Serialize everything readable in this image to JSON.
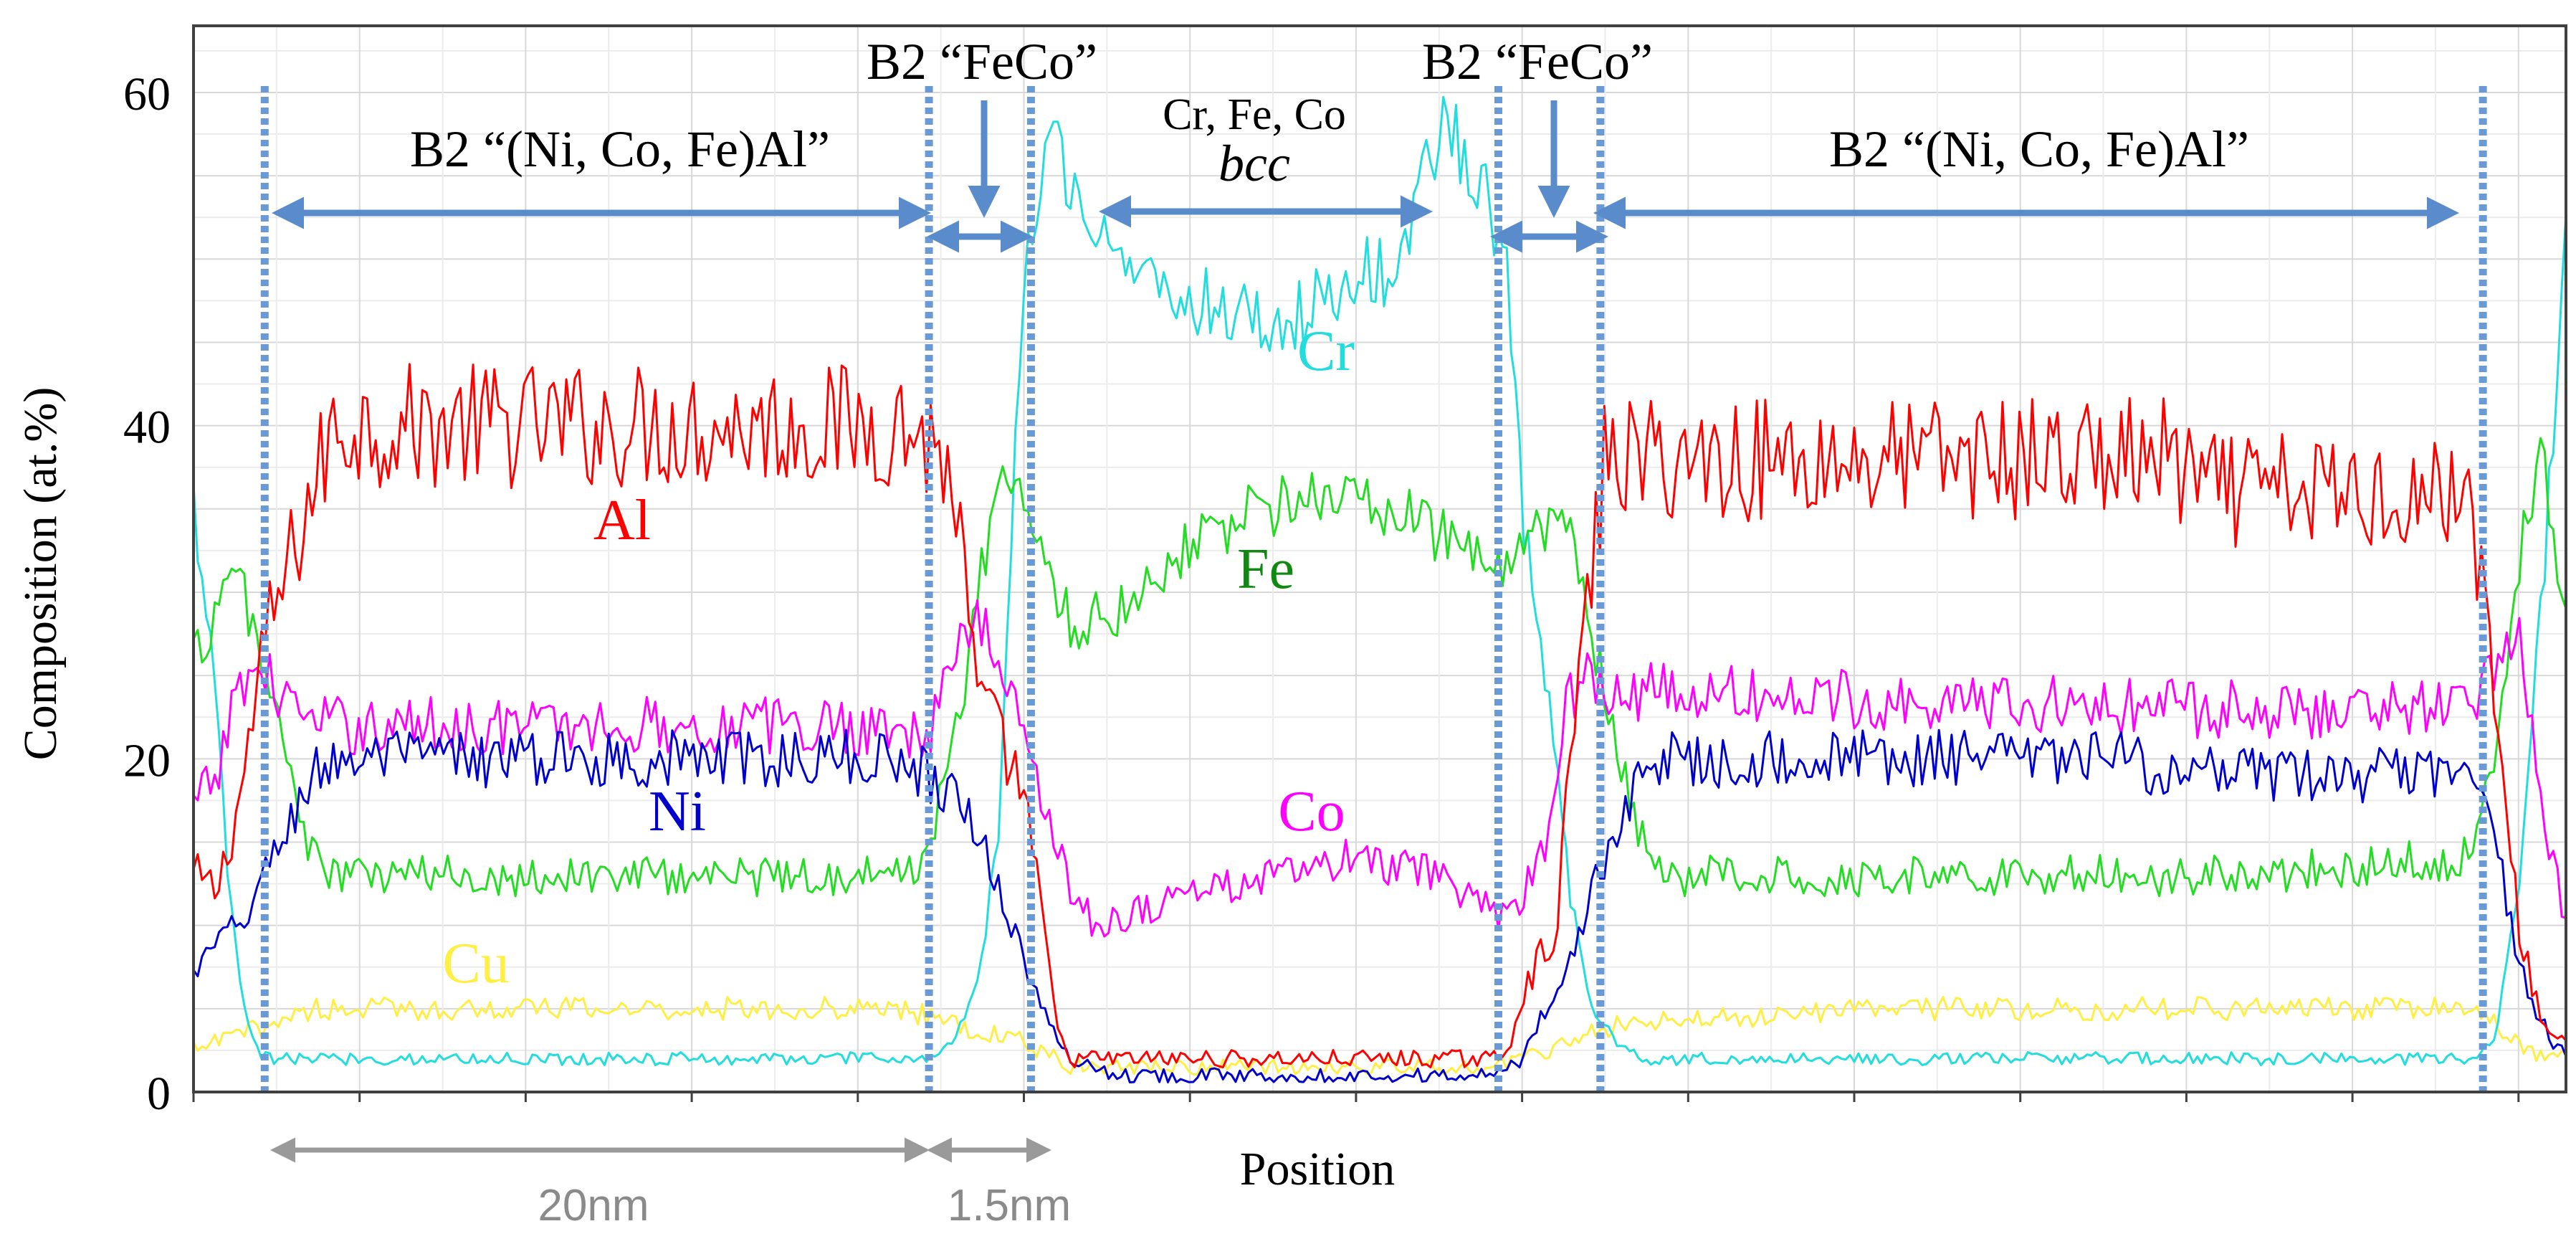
{
  "chart_data": {
    "type": "line",
    "title": "",
    "xlabel": "Position",
    "ylabel": "Composition (at.%)",
    "xlim": [
      0,
      100
    ],
    "ylim": [
      0,
      64
    ],
    "yticks": [
      0,
      20,
      40,
      60
    ],
    "grid": true,
    "series": [
      {
        "name": "Al",
        "label": "Al",
        "color": "#ff0000",
        "x": [
          0,
          1,
          2,
          3,
          5,
          6,
          30,
          31,
          32,
          33,
          35,
          36,
          36.5,
          37,
          39,
          42,
          51,
          52,
          53,
          55,
          55.5,
          56,
          57.5,
          58,
          59,
          59.5,
          67,
          68,
          82,
          83,
          84,
          85,
          96,
          97,
          98,
          99,
          100
        ],
        "y": [
          13,
          12,
          18,
          27,
          36,
          40,
          40,
          39,
          37,
          24,
          18,
          8,
          3,
          2,
          2,
          2,
          2,
          2,
          2,
          2,
          3,
          6,
          10,
          20,
          32,
          38,
          38,
          38,
          38,
          38,
          37,
          36,
          36,
          23,
          10,
          4,
          3
        ]
      },
      {
        "name": "Ni",
        "label": "Ni",
        "color": "#0000cc",
        "x": [
          0,
          1,
          2,
          3,
          4,
          5,
          6,
          30,
          31,
          32,
          33,
          34,
          35,
          36,
          37,
          39,
          42,
          51,
          52,
          53,
          55,
          56,
          57,
          58,
          59,
          60,
          61,
          62,
          68,
          82,
          83,
          84,
          85,
          96,
          97,
          98,
          99,
          100
        ],
        "y": [
          7,
          9,
          10,
          13,
          16,
          19,
          20,
          20,
          19,
          18,
          16,
          12,
          8,
          4,
          2,
          1,
          1,
          1,
          1,
          1,
          1,
          2,
          5,
          8,
          12,
          16,
          19,
          20,
          20,
          20,
          19,
          19,
          19,
          19,
          15,
          8,
          4,
          2
        ]
      },
      {
        "name": "Co",
        "label": "Co",
        "color": "#ff00ff",
        "x": [
          0,
          1,
          2,
          3,
          5,
          30,
          31,
          32,
          33,
          34,
          35,
          36,
          37,
          38,
          42,
          46,
          49,
          52,
          54,
          55,
          56,
          57,
          57.5,
          58,
          59,
          60,
          85,
          96,
          97,
          98,
          99,
          100
        ],
        "y": [
          17,
          19,
          25,
          25,
          22,
          22,
          21,
          26,
          29,
          25,
          22,
          17,
          12,
          10,
          12,
          13,
          14,
          13,
          12,
          10,
          12,
          15,
          20,
          24,
          25,
          24,
          23,
          23,
          26,
          28,
          17,
          10
        ]
      },
      {
        "name": "Fe",
        "label": "Fe",
        "color": "#22dd22",
        "x": [
          0,
          1,
          2,
          3,
          4,
          5,
          6,
          30,
          31,
          32,
          33,
          34,
          35,
          36,
          37,
          39,
          42,
          45,
          48,
          50,
          52,
          55,
          56,
          57,
          57.5,
          58,
          59,
          60,
          61,
          62,
          85,
          96,
          97,
          98,
          99,
          100
        ],
        "y": [
          26,
          29,
          31,
          25,
          20,
          14,
          13,
          13,
          15,
          20,
          30,
          37,
          35,
          32,
          28,
          29,
          33,
          35,
          36,
          35,
          34,
          31,
          32,
          34,
          36,
          33,
          27,
          20,
          15,
          13,
          13,
          14,
          20,
          32,
          39,
          28
        ]
      },
      {
        "name": "Cr",
        "label": "Cr",
        "color": "#22dddd",
        "x": [
          0,
          0.5,
          1,
          1.5,
          2,
          2.5,
          3,
          5,
          30,
          31,
          32,
          33,
          34,
          34.5,
          35,
          36,
          37,
          38,
          40,
          43,
          46,
          48,
          51,
          52,
          53,
          54,
          55,
          55.5,
          56,
          57,
          58,
          59,
          60,
          61,
          62,
          96,
          97,
          98,
          99,
          100
        ],
        "y": [
          35,
          30,
          22,
          12,
          6,
          3,
          2,
          2,
          2,
          2,
          3,
          6,
          16,
          35,
          48,
          58,
          55,
          52,
          49,
          47,
          46,
          48,
          50,
          56,
          58,
          55,
          52,
          47,
          35,
          25,
          12,
          5,
          3,
          2,
          2,
          2,
          3,
          12,
          30,
          51
        ]
      },
      {
        "name": "Cu",
        "label": "Cu",
        "color": "#ffee44",
        "x": [
          0,
          1,
          2,
          3,
          5,
          10,
          20,
          30,
          32,
          35,
          37,
          40,
          50,
          55,
          56,
          58,
          60,
          70,
          85,
          95,
          96,
          97,
          98,
          99,
          100
        ],
        "y": [
          2.5,
          3,
          3.5,
          4,
          5,
          5,
          5,
          5,
          4,
          3,
          1.5,
          1.5,
          1.5,
          1.5,
          2,
          3,
          4,
          5,
          5,
          5,
          5,
          4,
          3,
          2,
          2
        ]
      }
    ],
    "phase_boundaries": [
      3,
      31,
      35.3,
      55,
      59.3,
      96.5
    ],
    "annotations": [
      {
        "label": "B2 “(Ni, Co, Fe)Al”"
      },
      {
        "label": "B2 “FeCo”"
      },
      {
        "label": "Cr, Fe, Co"
      },
      {
        "label": "bcc"
      },
      {
        "label": "B2 “FeCo”"
      },
      {
        "label": "B2 “(Ni, Co, Fe)Al”"
      }
    ],
    "scale_bars": [
      {
        "label": "20nm",
        "from": 3,
        "to": 31
      },
      {
        "label": "1.5nm",
        "from": 31,
        "to": 35.3
      }
    ]
  }
}
